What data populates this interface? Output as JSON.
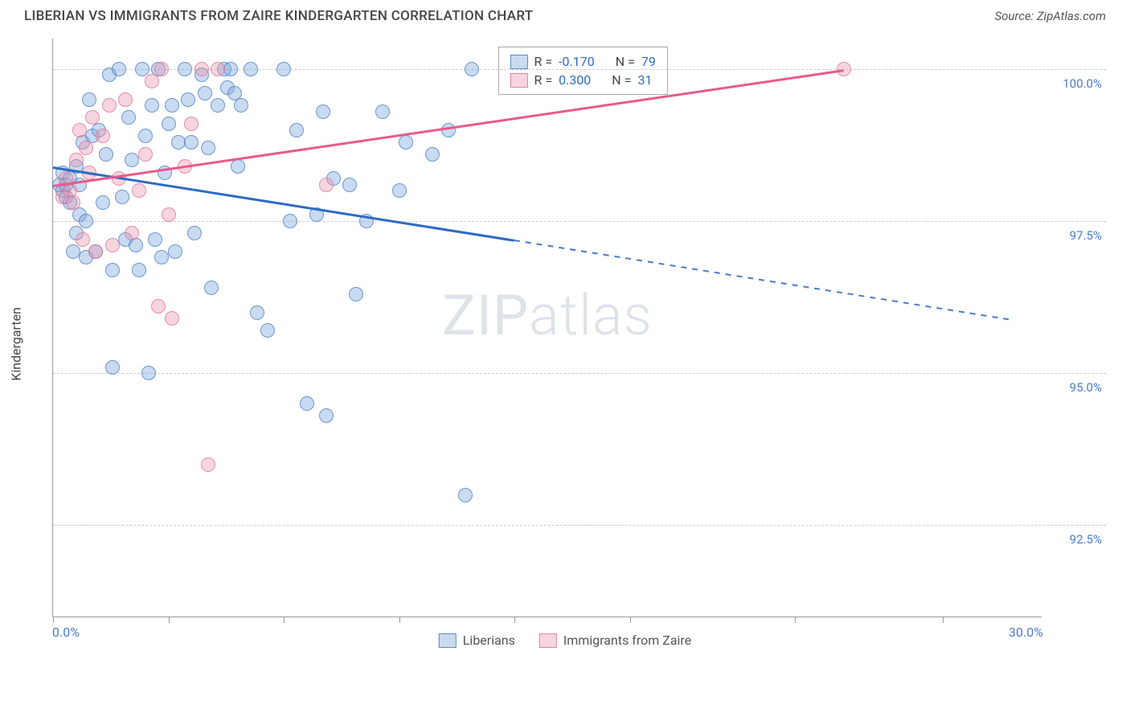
{
  "header": {
    "title": "LIBERIAN VS IMMIGRANTS FROM ZAIRE KINDERGARTEN CORRELATION CHART",
    "source": "Source: ZipAtlas.com"
  },
  "chart": {
    "type": "scatter",
    "ylabel": "Kindergarten",
    "xlim": [
      0,
      30
    ],
    "ylim": [
      91.0,
      100.5
    ],
    "x_ticks": [
      0,
      3.5,
      7,
      10.5,
      14,
      17.5,
      22.5,
      27
    ],
    "x_axis_labels": [
      {
        "pos": 0,
        "text": "0.0%"
      },
      {
        "pos": 30,
        "text": "30.0%"
      }
    ],
    "y_gridlines": [
      92.5,
      95.0,
      97.5,
      100.0
    ],
    "y_tick_labels": [
      "92.5%",
      "95.0%",
      "97.5%",
      "100.0%"
    ],
    "background_color": "#ffffff",
    "grid_color": "#cccccc",
    "colors": {
      "blue_fill": "rgba(120,165,220,0.4)",
      "blue_stroke": "rgba(70,120,190,0.7)",
      "pink_fill": "rgba(235,150,175,0.4)",
      "pink_stroke": "rgba(220,110,145,0.7)",
      "blue_line": "#2d6bc4",
      "pink_line": "#e85a8a",
      "tick_text": "#4a7bc8"
    },
    "series": [
      {
        "name": "Liberians",
        "color": "blue",
        "R": "-0.170",
        "N": "79",
        "trend": {
          "x1": 0,
          "y1": 98.4,
          "x2_solid": 14,
          "y2_solid": 97.2,
          "x2_dash": 29,
          "y2_dash": 95.9
        },
        "points": [
          [
            0.2,
            98.1
          ],
          [
            0.3,
            98.0
          ],
          [
            0.3,
            98.3
          ],
          [
            0.4,
            97.9
          ],
          [
            0.4,
            98.1
          ],
          [
            0.5,
            98.2
          ],
          [
            0.5,
            97.8
          ],
          [
            0.6,
            97.0
          ],
          [
            0.7,
            98.4
          ],
          [
            0.7,
            97.3
          ],
          [
            0.8,
            97.6
          ],
          [
            0.8,
            98.1
          ],
          [
            0.9,
            98.8
          ],
          [
            1.0,
            97.5
          ],
          [
            1.0,
            96.9
          ],
          [
            1.1,
            99.5
          ],
          [
            1.2,
            98.9
          ],
          [
            1.3,
            97.0
          ],
          [
            1.4,
            99.0
          ],
          [
            1.5,
            97.8
          ],
          [
            1.6,
            98.6
          ],
          [
            1.7,
            99.9
          ],
          [
            1.8,
            96.7
          ],
          [
            1.8,
            95.1
          ],
          [
            2.0,
            100.0
          ],
          [
            2.1,
            97.9
          ],
          [
            2.2,
            97.2
          ],
          [
            2.3,
            99.2
          ],
          [
            2.4,
            98.5
          ],
          [
            2.5,
            97.1
          ],
          [
            2.6,
            96.7
          ],
          [
            2.7,
            100.0
          ],
          [
            2.8,
            98.9
          ],
          [
            2.9,
            95.0
          ],
          [
            3.0,
            99.4
          ],
          [
            3.1,
            97.2
          ],
          [
            3.2,
            100.0
          ],
          [
            3.3,
            96.9
          ],
          [
            3.4,
            98.3
          ],
          [
            3.5,
            99.1
          ],
          [
            3.6,
            99.4
          ],
          [
            3.7,
            97.0
          ],
          [
            3.8,
            98.8
          ],
          [
            4.0,
            100.0
          ],
          [
            4.1,
            99.5
          ],
          [
            4.2,
            98.8
          ],
          [
            4.3,
            97.3
          ],
          [
            4.5,
            99.9
          ],
          [
            4.6,
            99.6
          ],
          [
            4.7,
            98.7
          ],
          [
            4.8,
            96.4
          ],
          [
            5.0,
            99.4
          ],
          [
            5.2,
            100.0
          ],
          [
            5.3,
            99.7
          ],
          [
            5.4,
            100.0
          ],
          [
            5.5,
            99.6
          ],
          [
            5.6,
            98.4
          ],
          [
            5.7,
            99.4
          ],
          [
            6.0,
            100.0
          ],
          [
            6.2,
            96.0
          ],
          [
            6.5,
            95.7
          ],
          [
            7.0,
            100.0
          ],
          [
            7.2,
            97.5
          ],
          [
            7.4,
            99.0
          ],
          [
            7.7,
            94.5
          ],
          [
            8.0,
            97.6
          ],
          [
            8.2,
            99.3
          ],
          [
            8.3,
            94.3
          ],
          [
            8.5,
            98.2
          ],
          [
            9.0,
            98.1
          ],
          [
            9.2,
            96.3
          ],
          [
            9.5,
            97.5
          ],
          [
            10.0,
            99.3
          ],
          [
            10.5,
            98.0
          ],
          [
            10.7,
            98.8
          ],
          [
            11.5,
            98.6
          ],
          [
            12.0,
            99.0
          ],
          [
            12.5,
            93.0
          ],
          [
            12.7,
            100.0
          ]
        ]
      },
      {
        "name": "Immigrants from Zaire",
        "color": "pink",
        "R": "0.300",
        "N": "31",
        "trend": {
          "x1": 0,
          "y1": 98.1,
          "x2_solid": 24,
          "y2_solid": 100.0
        },
        "points": [
          [
            0.3,
            97.9
          ],
          [
            0.4,
            98.2
          ],
          [
            0.5,
            98.0
          ],
          [
            0.6,
            97.8
          ],
          [
            0.7,
            98.5
          ],
          [
            0.8,
            99.0
          ],
          [
            0.9,
            97.2
          ],
          [
            1.0,
            98.7
          ],
          [
            1.1,
            98.3
          ],
          [
            1.2,
            99.2
          ],
          [
            1.3,
            97.0
          ],
          [
            1.5,
            98.9
          ],
          [
            1.7,
            99.4
          ],
          [
            1.8,
            97.1
          ],
          [
            2.0,
            98.2
          ],
          [
            2.2,
            99.5
          ],
          [
            2.4,
            97.3
          ],
          [
            2.6,
            98.0
          ],
          [
            2.8,
            98.6
          ],
          [
            3.0,
            99.8
          ],
          [
            3.2,
            96.1
          ],
          [
            3.3,
            100.0
          ],
          [
            3.5,
            97.6
          ],
          [
            3.6,
            95.9
          ],
          [
            4.0,
            98.4
          ],
          [
            4.2,
            99.1
          ],
          [
            4.5,
            100.0
          ],
          [
            4.7,
            93.5
          ],
          [
            5.0,
            100.0
          ],
          [
            8.3,
            98.1
          ],
          [
            24.0,
            100.0
          ]
        ]
      }
    ],
    "legend_box": {
      "rows": [
        {
          "color": "blue",
          "r_label": "R =",
          "r_val": "-0.170",
          "n_label": "N =",
          "n_val": "79"
        },
        {
          "color": "pink",
          "r_label": "R =",
          "r_val": "0.300",
          "n_label": "N =",
          "n_val": "31"
        }
      ]
    },
    "bottom_legend": [
      {
        "color": "blue",
        "label": "Liberians"
      },
      {
        "color": "pink",
        "label": "Immigrants from Zaire"
      }
    ],
    "watermark": {
      "text1": "ZIP",
      "text2": "atlas"
    }
  }
}
